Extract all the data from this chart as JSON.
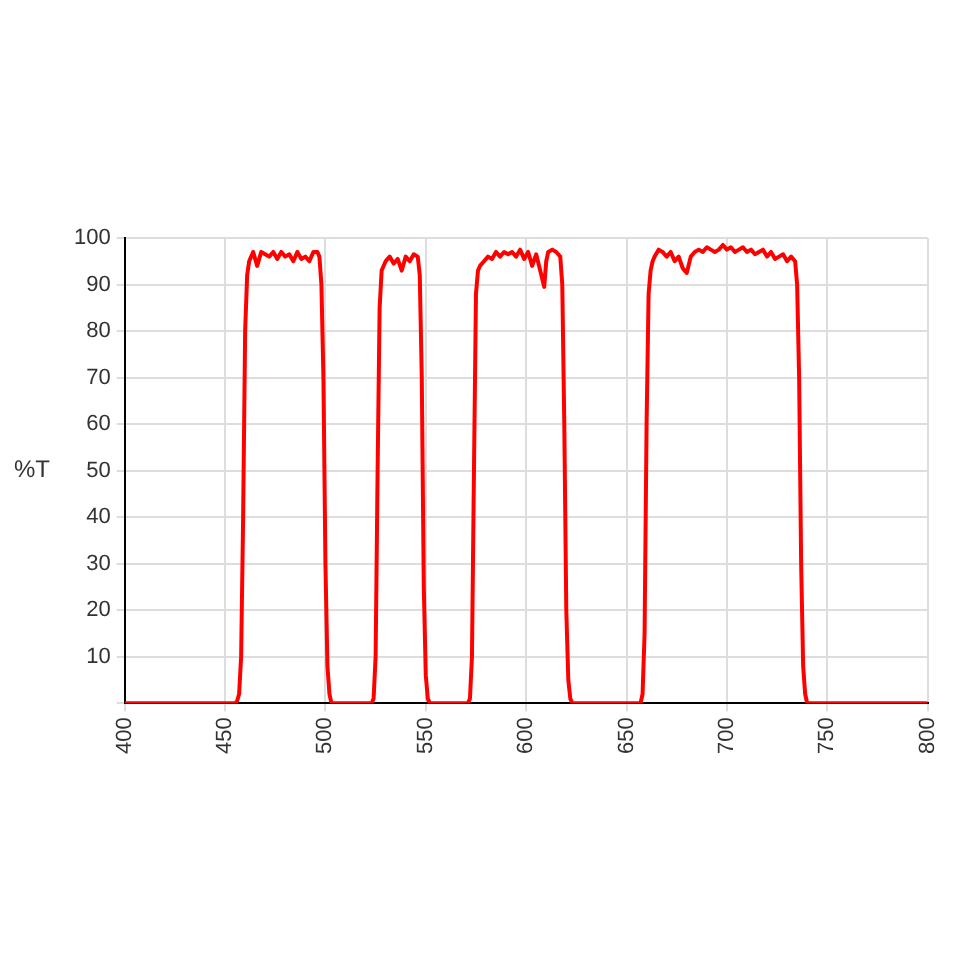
{
  "chart_data": {
    "type": "line",
    "ylabel": "%T",
    "series": [
      {
        "color": "#ff0000",
        "x": [
          400,
          455,
          456,
          457,
          458,
          459,
          460,
          461,
          462,
          464,
          466,
          468,
          470,
          472,
          474,
          476,
          478,
          480,
          482,
          484,
          486,
          488,
          490,
          492,
          494,
          496,
          497,
          498,
          499,
          500,
          501,
          502,
          503,
          523,
          524,
          525,
          526,
          527,
          528,
          530,
          532,
          534,
          536,
          538,
          540,
          542,
          544,
          546,
          547,
          548,
          549,
          550,
          551,
          552,
          554,
          571,
          572,
          573,
          574,
          575,
          576,
          577,
          579,
          581,
          583,
          585,
          587,
          589,
          591,
          593,
          595,
          597,
          599,
          601,
          603,
          605,
          607,
          609,
          610,
          611,
          613,
          615,
          617,
          618,
          619,
          620,
          621,
          622,
          623,
          624,
          657,
          658,
          659,
          660,
          661,
          662,
          663,
          664,
          666,
          668,
          670,
          672,
          674,
          676,
          678,
          680,
          682,
          684,
          686,
          688,
          690,
          692,
          694,
          696,
          698,
          700,
          702,
          704,
          706,
          708,
          710,
          712,
          714,
          716,
          718,
          720,
          722,
          724,
          726,
          728,
          730,
          732,
          734,
          735,
          736,
          737,
          738,
          739,
          740,
          741,
          800
        ],
        "values": [
          0,
          0,
          0.5,
          2,
          10,
          40,
          80,
          92,
          95,
          97,
          94,
          97,
          96.5,
          96,
          97,
          95.5,
          97,
          96,
          96.5,
          95,
          97,
          95.5,
          96,
          95,
          97,
          97,
          96,
          90,
          70,
          30,
          8,
          2,
          0,
          0,
          1,
          10,
          50,
          85,
          93,
          95,
          96,
          94.5,
          95.5,
          93,
          96,
          95,
          96.5,
          96,
          92,
          70,
          25,
          6,
          1,
          0,
          0,
          0,
          1,
          10,
          50,
          88,
          93,
          94,
          95,
          96,
          95.5,
          97,
          96,
          97,
          96.5,
          97,
          96,
          97.5,
          95.5,
          97,
          94,
          96.5,
          93,
          89.5,
          95,
          97,
          97.5,
          97,
          96,
          90,
          60,
          20,
          5,
          1,
          0,
          0,
          0,
          2,
          15,
          60,
          88,
          93,
          95,
          96,
          97.5,
          97,
          96,
          97,
          95,
          96,
          93.5,
          92.5,
          96,
          97,
          97.5,
          97,
          98,
          97.5,
          97,
          97.5,
          98.5,
          97.5,
          98,
          97,
          97.5,
          98,
          97,
          97.5,
          96.5,
          97,
          97.5,
          96,
          97,
          95.5,
          96,
          96.5,
          95,
          96,
          95,
          90,
          70,
          30,
          8,
          2,
          0,
          0,
          0
        ]
      }
    ],
    "xlim": [
      400,
      800
    ],
    "xticks": [
      400,
      450,
      500,
      550,
      600,
      650,
      700,
      750,
      800
    ],
    "ylim": [
      0,
      100
    ],
    "yticks": [
      {
        "value": 0,
        "label": null
      },
      10,
      20,
      30,
      40,
      50,
      60,
      70,
      80,
      90,
      100
    ],
    "grid": true,
    "legend": false,
    "marker": "none",
    "line_style": "solid"
  }
}
